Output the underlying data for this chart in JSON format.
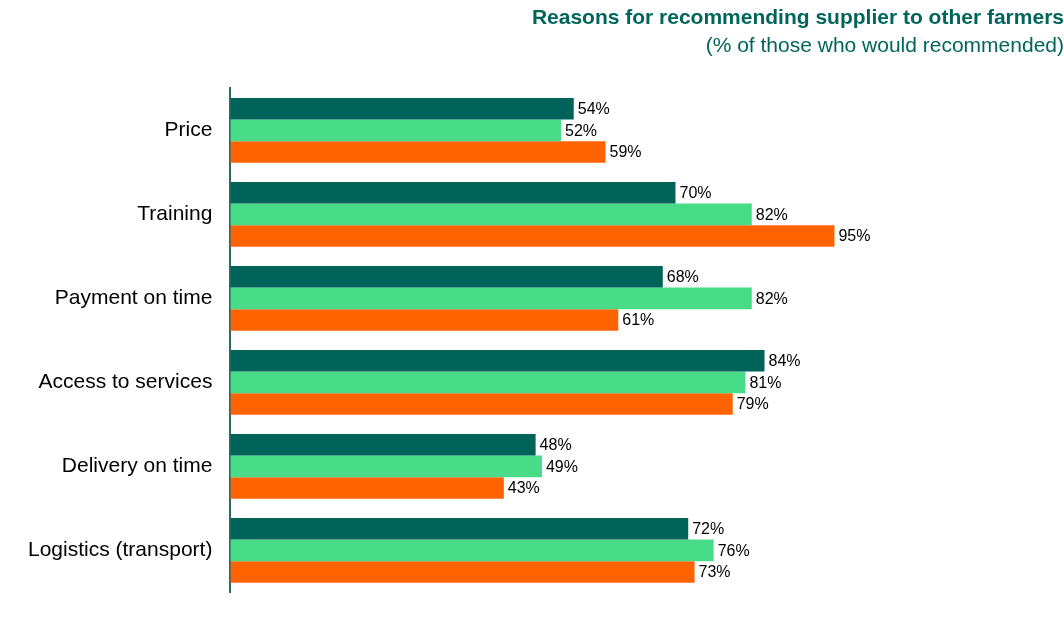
{
  "chart_data": {
    "type": "bar",
    "orientation": "horizontal",
    "title": "Reasons for recommending supplier to other farmers",
    "subtitle": "(% of those who would recommended)",
    "categories": [
      "Price",
      "Training",
      "Payment on time",
      "Access to services",
      "Delivery on time",
      "Logistics (transport)"
    ],
    "series": [
      {
        "color": "#00635a",
        "values": [
          54,
          70,
          68,
          84,
          48,
          72
        ],
        "value_labels": [
          "54%",
          "70%",
          "68%",
          "84%",
          "48%",
          "72%"
        ]
      },
      {
        "color": "#48db88",
        "values": [
          52,
          82,
          82,
          81,
          49,
          76
        ],
        "value_labels": [
          "52%",
          "82%",
          "82%",
          "81%",
          "49%",
          "76%"
        ]
      },
      {
        "color": "#ff6200",
        "values": [
          59,
          95,
          61,
          79,
          43,
          73
        ],
        "value_labels": [
          "59%",
          "95%",
          "61%",
          "79%",
          "43%",
          "73%"
        ]
      }
    ],
    "legend": false
  }
}
